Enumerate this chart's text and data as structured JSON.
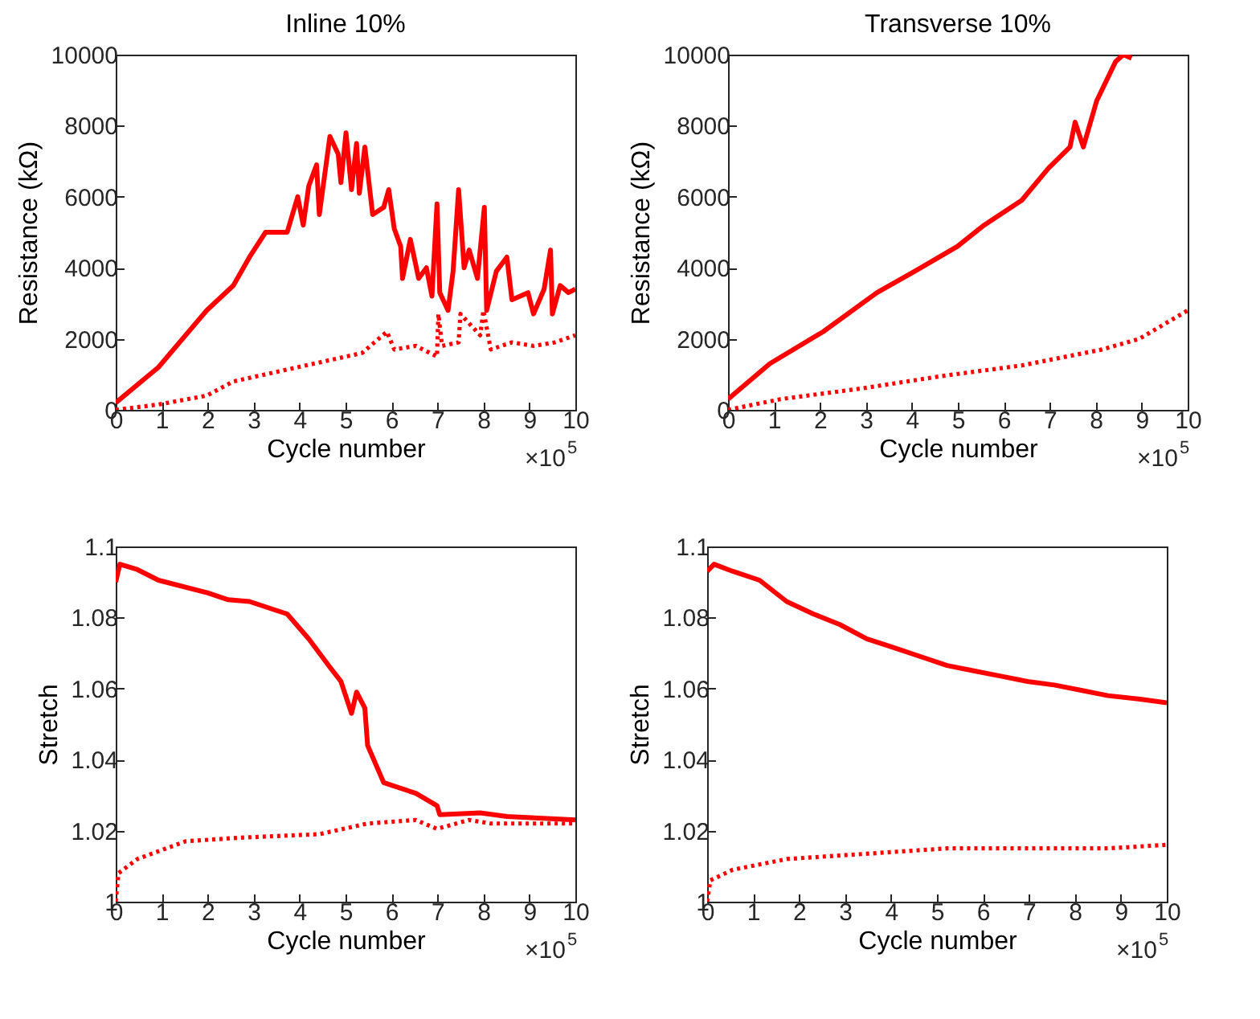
{
  "chart_data": [
    {
      "type": "line",
      "title": "Inline 10%",
      "xlabel": "Cycle number",
      "ylabel": "Resistance (kΩ)",
      "annotations": [
        "×10$^{5}$"
      ],
      "xlim": [
        0,
        10
      ],
      "xticks": [
        0,
        1,
        2,
        3,
        4,
        5,
        6,
        7,
        8,
        9,
        10
      ],
      "ylim": [
        0,
        10000
      ],
      "yticks": [
        0,
        2000,
        4000,
        6000,
        8000,
        10000
      ],
      "series": [
        {
          "color": "#ff0000",
          "line_style": "solid",
          "x": [
            0,
            0.93,
            1.98,
            2.56,
            2.91,
            3.26,
            3.73,
            3.96,
            4.08,
            4.2,
            4.37,
            4.43,
            4.66,
            4.84,
            4.9,
            5.01,
            5.13,
            5.24,
            5.3,
            5.42,
            5.59,
            5.83,
            5.94,
            6.06,
            6.2,
            6.24,
            6.41,
            6.59,
            6.76,
            6.88,
            6.99,
            7.05,
            7.23,
            7.34,
            7.46,
            7.58,
            7.69,
            7.87,
            8.02,
            8.07,
            8.28,
            8.51,
            8.62,
            8.97,
            9.09,
            9.32,
            9.46,
            9.5,
            9.67,
            9.85,
            10
          ],
          "values": [
            200,
            1200,
            2800,
            3500,
            4300,
            5000,
            5000,
            6000,
            5200,
            6300,
            6900,
            5500,
            7700,
            7200,
            6400,
            7800,
            6200,
            7500,
            6100,
            7400,
            5500,
            5700,
            6200,
            5100,
            4600,
            3700,
            4800,
            3700,
            4000,
            3200,
            5800,
            3300,
            2800,
            3900,
            6200,
            4000,
            4500,
            3700,
            5700,
            2800,
            3900,
            4300,
            3100,
            3300,
            2700,
            3400,
            4500,
            2700,
            3500,
            3300,
            3400
          ]
        },
        {
          "color": "#ff0000",
          "line_style": "dotted",
          "x": [
            0,
            0.93,
            1.98,
            2.56,
            3.26,
            3.96,
            4.66,
            5.36,
            5.9,
            6.06,
            6.53,
            6.99,
            7.02,
            7.1,
            7.46,
            7.5,
            7.93,
            8.0,
            8.16,
            8.62,
            9.09,
            9.56,
            10
          ],
          "values": [
            0,
            150,
            400,
            800,
            1000,
            1200,
            1400,
            1600,
            2200,
            1700,
            1800,
            1500,
            2700,
            1800,
            1900,
            2700,
            2100,
            2800,
            1700,
            1900,
            1800,
            1900,
            2100
          ]
        }
      ]
    },
    {
      "type": "line",
      "title": "Transverse 10%",
      "xlabel": "Cycle number",
      "ylabel": "Resistance (kΩ)",
      "annotations": [
        "×10$^{5}$"
      ],
      "xlim": [
        0,
        10
      ],
      "xticks": [
        0,
        1,
        2,
        3,
        4,
        5,
        6,
        7,
        8,
        9,
        10
      ],
      "ylim": [
        0,
        10000
      ],
      "yticks": [
        0,
        2000,
        4000,
        6000,
        8000,
        10000
      ],
      "series": [
        {
          "color": "#ff0000",
          "line_style": "solid",
          "x": [
            0,
            0.91,
            2.07,
            3.24,
            4.06,
            4.99,
            5.57,
            6.39,
            6.97,
            7.44,
            7.55,
            7.73,
            8.02,
            8.43,
            8.6,
            8.78
          ],
          "values": [
            300,
            1300,
            2200,
            3300,
            3900,
            4600,
            5200,
            5900,
            6800,
            7400,
            8100,
            7400,
            8700,
            9800,
            10000,
            9900
          ]
        },
        {
          "color": "#ff0000",
          "line_style": "dotted",
          "x": [
            0,
            1.14,
            2.89,
            4.64,
            6.39,
            8.14,
            8.95,
            10
          ],
          "values": [
            0,
            300,
            600,
            950,
            1250,
            1700,
            2000,
            2800
          ]
        }
      ]
    },
    {
      "type": "line",
      "xlabel": "Cycle number",
      "ylabel": "Stretch",
      "annotations": [
        "×10$^{5}$"
      ],
      "xlim": [
        0,
        10
      ],
      "xticks": [
        0,
        1,
        2,
        3,
        4,
        5,
        6,
        7,
        8,
        9,
        10
      ],
      "ylim": [
        1,
        1.1
      ],
      "yticks": [
        1,
        1.02,
        1.04,
        1.06,
        1.08,
        1.1
      ],
      "series": [
        {
          "color": "#ff0000",
          "line_style": "solid",
          "x": [
            0,
            0.09,
            0.47,
            0.93,
            1.98,
            2.45,
            2.91,
            3.73,
            4.2,
            4.66,
            4.9,
            5.13,
            5.24,
            5.42,
            5.48,
            5.83,
            6.53,
            6.99,
            7.05,
            7.93,
            8.51,
            10
          ],
          "values": [
            1.09,
            1.095,
            1.0935,
            1.0905,
            1.087,
            1.085,
            1.0845,
            1.081,
            1.074,
            1.066,
            1.062,
            1.053,
            1.059,
            1.0545,
            1.044,
            1.0335,
            1.0305,
            1.027,
            1.0245,
            1.025,
            1.024,
            1.023
          ]
        },
        {
          "color": "#ff0000",
          "line_style": "dotted",
          "x": [
            0,
            0.06,
            0.47,
            1.52,
            2.68,
            4.43,
            5.48,
            6.53,
            6.99,
            7.69,
            8.16,
            10
          ],
          "values": [
            1.0,
            1.008,
            1.012,
            1.017,
            1.018,
            1.019,
            1.022,
            1.023,
            1.0205,
            1.023,
            1.022,
            1.022
          ]
        }
      ]
    },
    {
      "type": "line",
      "xlabel": "Cycle number",
      "ylabel": "Stretch",
      "annotations": [
        "×10$^{5}$"
      ],
      "xlim": [
        0,
        10
      ],
      "xticks": [
        0,
        1,
        2,
        3,
        4,
        5,
        6,
        7,
        8,
        9,
        10
      ],
      "ylim": [
        1,
        1.1
      ],
      "yticks": [
        1,
        1.02,
        1.04,
        1.06,
        1.08,
        1.1
      ],
      "series": [
        {
          "color": "#ff0000",
          "line_style": "solid",
          "x": [
            0,
            0.15,
            0.56,
            1.14,
            1.73,
            2.31,
            2.89,
            3.47,
            4.06,
            4.64,
            5.22,
            5.8,
            6.39,
            6.97,
            7.55,
            8.14,
            8.72,
            9.42,
            10
          ],
          "values": [
            1.093,
            1.095,
            1.093,
            1.0905,
            1.0845,
            1.081,
            1.078,
            1.074,
            1.0715,
            1.069,
            1.0665,
            1.065,
            1.0635,
            1.062,
            1.061,
            1.0595,
            1.058,
            1.057,
            1.056
          ]
        },
        {
          "color": "#ff0000",
          "line_style": "dotted",
          "x": [
            0,
            0.07,
            0.56,
            1.73,
            2.89,
            4.06,
            5.22,
            6.39,
            8.72,
            10
          ],
          "values": [
            1.0,
            1.006,
            1.009,
            1.012,
            1.013,
            1.014,
            1.015,
            1.015,
            1.015,
            1.016
          ]
        }
      ]
    }
  ]
}
